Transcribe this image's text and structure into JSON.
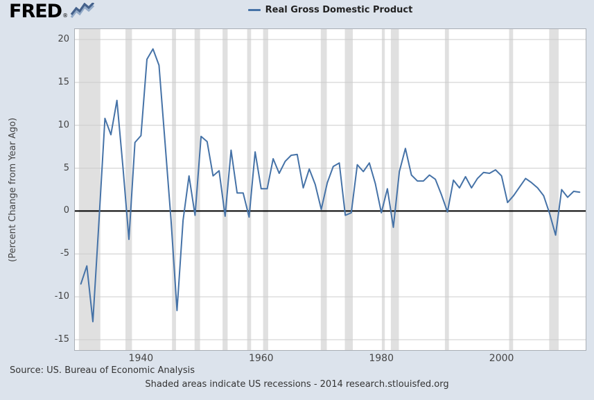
{
  "header": {
    "logo_text": "FRED",
    "logo_reg": "®"
  },
  "footer": {
    "source": "Source: US. Bureau of Economic Analysis",
    "note": "Shaded areas indicate US recessions - 2014 research.stlouisfed.org"
  },
  "colors": {
    "background": "#dce3ec",
    "plot_background": "#ffffff",
    "line": "#4572a7",
    "gridline": "#cccccc",
    "zero_line": "#000000",
    "recession": "#e0e0e0",
    "text": "#444444",
    "logo_squiggle_dark": "#44618b",
    "logo_squiggle_light": "#93aac7"
  },
  "chart_data": {
    "type": "line",
    "title": "Real Gross Domestic Product",
    "ylabel": "(Percent Change from Year Ago)",
    "xlabel": "",
    "xlim": [
      1929,
      2014
    ],
    "ylim": [
      -15,
      20
    ],
    "y_ticks": [
      20,
      15,
      10,
      5,
      0,
      -5,
      -10,
      -15
    ],
    "x_ticks": [
      1940,
      1960,
      1980,
      2000
    ],
    "grid": true,
    "legend_position": "top-center",
    "x": [
      1930,
      1931,
      1932,
      1933,
      1934,
      1935,
      1936,
      1937,
      1938,
      1939,
      1940,
      1941,
      1942,
      1943,
      1944,
      1945,
      1946,
      1947,
      1948,
      1949,
      1950,
      1951,
      1952,
      1953,
      1954,
      1955,
      1956,
      1957,
      1958,
      1959,
      1960,
      1961,
      1962,
      1963,
      1964,
      1965,
      1966,
      1967,
      1968,
      1969,
      1970,
      1971,
      1972,
      1973,
      1974,
      1975,
      1976,
      1977,
      1978,
      1979,
      1980,
      1981,
      1982,
      1983,
      1984,
      1985,
      1986,
      1987,
      1988,
      1989,
      1990,
      1991,
      1992,
      1993,
      1994,
      1995,
      1996,
      1997,
      1998,
      1999,
      2000,
      2001,
      2002,
      2003,
      2004,
      2005,
      2006,
      2007,
      2008,
      2009,
      2010,
      2011,
      2012,
      2013
    ],
    "values": [
      -8.5,
      -6.4,
      -12.9,
      -1.3,
      10.8,
      8.9,
      12.9,
      5.1,
      -3.3,
      8.0,
      8.8,
      17.7,
      18.9,
      17.0,
      8.0,
      -1.0,
      -11.6,
      -1.1,
      4.1,
      -0.5,
      8.7,
      8.1,
      4.1,
      4.7,
      -0.6,
      7.1,
      2.1,
      2.1,
      -0.7,
      6.9,
      2.6,
      2.6,
      6.1,
      4.4,
      5.8,
      6.5,
      6.6,
      2.7,
      4.9,
      3.1,
      0.2,
      3.3,
      5.2,
      5.6,
      -0.5,
      -0.2,
      5.4,
      4.6,
      5.6,
      3.2,
      -0.2,
      2.6,
      -1.9,
      4.6,
      7.3,
      4.2,
      3.5,
      3.5,
      4.2,
      3.7,
      1.9,
      -0.1,
      3.6,
      2.7,
      4.0,
      2.7,
      3.8,
      4.5,
      4.4,
      4.8,
      4.1,
      1.0,
      1.8,
      2.8,
      3.8,
      3.3,
      2.7,
      1.8,
      -0.3,
      -2.8,
      2.5,
      1.6,
      2.3,
      2.2
    ],
    "recessions": [
      [
        1929.67,
        1933.25
      ],
      [
        1937.42,
        1938.5
      ],
      [
        1945.17,
        1945.83
      ],
      [
        1948.92,
        1949.83
      ],
      [
        1953.58,
        1954.42
      ],
      [
        1957.67,
        1958.33
      ],
      [
        1960.33,
        1961.17
      ],
      [
        1969.92,
        1970.92
      ],
      [
        1973.92,
        1975.25
      ],
      [
        1980.08,
        1980.58
      ],
      [
        1981.58,
        1982.92
      ],
      [
        1990.58,
        1991.25
      ],
      [
        2001.25,
        2001.92
      ],
      [
        2007.92,
        2009.5
      ]
    ]
  }
}
